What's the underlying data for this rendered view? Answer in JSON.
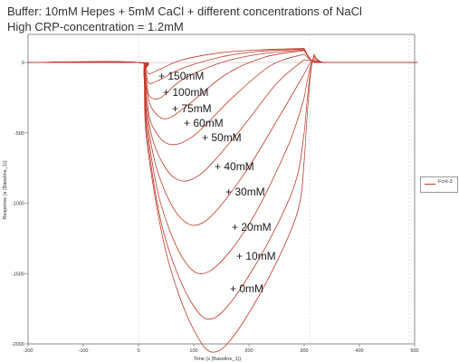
{
  "header": {
    "line1": "Buffer: 10mM Hepes + 5mM CaCl + different concentrations of NaCl",
    "line2": "High CRP-concentration = 1.2mM"
  },
  "chart_data": {
    "type": "line",
    "xlabel": "Time (s (Baseline_1))",
    "ylabel": "Response (s (Baseline_1))",
    "xlim": [
      -200,
      500
    ],
    "ylim": [
      -2000,
      200
    ],
    "x_ticks": [
      "-200",
      "-100",
      "0",
      "100",
      "200",
      "300",
      "400",
      "500"
    ],
    "y_ticks": [
      "0",
      "-500",
      "-1000",
      "-1500",
      "-2000"
    ],
    "legend": "Fcnt-3",
    "color": "#c0392b",
    "series": [
      {
        "label": "+ 150mM",
        "x": [
          -200,
          0,
          10,
          15,
          20,
          40,
          80,
          150,
          220,
          300
        ],
        "y": [
          0,
          0,
          -10,
          -60,
          -80,
          -45,
          20,
          70,
          90,
          100
        ]
      },
      {
        "label": "+ 100mM",
        "x": [
          -200,
          0,
          10,
          15,
          20,
          40,
          80,
          150,
          220,
          300
        ],
        "y": [
          0,
          0,
          -20,
          -100,
          -150,
          -120,
          -40,
          40,
          80,
          95
        ]
      },
      {
        "label": "+ 75mM",
        "x": [
          -200,
          0,
          10,
          15,
          20,
          40,
          80,
          150,
          220,
          300
        ],
        "y": [
          0,
          0,
          -30,
          -150,
          -240,
          -250,
          -120,
          0,
          60,
          90
        ]
      },
      {
        "label": "+ 60mM",
        "x": [
          -200,
          0,
          10,
          15,
          25,
          50,
          90,
          160,
          230,
          300
        ],
        "y": [
          0,
          0,
          -40,
          -200,
          -330,
          -400,
          -300,
          -80,
          40,
          85
        ]
      },
      {
        "label": "+ 50mM",
        "x": [
          -200,
          0,
          10,
          15,
          25,
          55,
          100,
          170,
          240,
          300
        ],
        "y": [
          0,
          0,
          -50,
          -260,
          -450,
          -580,
          -520,
          -250,
          -20,
          60
        ]
      },
      {
        "label": "+ 40mM",
        "x": [
          -200,
          0,
          10,
          15,
          30,
          65,
          110,
          180,
          250,
          300
        ],
        "y": [
          0,
          0,
          -60,
          -320,
          -600,
          -820,
          -800,
          -500,
          -150,
          20
        ]
      },
      {
        "label": "+ 30mM",
        "x": [
          -200,
          0,
          10,
          15,
          35,
          75,
          120,
          190,
          260,
          300
        ],
        "y": [
          0,
          0,
          -70,
          -380,
          -780,
          -1100,
          -1130,
          -800,
          -350,
          -80
        ]
      },
      {
        "label": "+ 20mM",
        "x": [
          -200,
          0,
          10,
          15,
          40,
          85,
          130,
          200,
          270,
          300
        ],
        "y": [
          0,
          0,
          -80,
          -440,
          -1000,
          -1420,
          -1480,
          -1150,
          -600,
          -250
        ]
      },
      {
        "label": "+ 10mM",
        "x": [
          -200,
          0,
          10,
          15,
          45,
          95,
          140,
          210,
          280,
          300
        ],
        "y": [
          0,
          0,
          -90,
          -500,
          -1200,
          -1700,
          -1810,
          -1450,
          -900,
          -500
        ]
      },
      {
        "label": "+ 0mM",
        "x": [
          -200,
          0,
          10,
          15,
          50,
          100,
          145,
          215,
          285,
          300
        ],
        "y": [
          0,
          0,
          -100,
          -560,
          -1350,
          -1900,
          -2050,
          -1680,
          -1100,
          -700
        ]
      }
    ]
  }
}
